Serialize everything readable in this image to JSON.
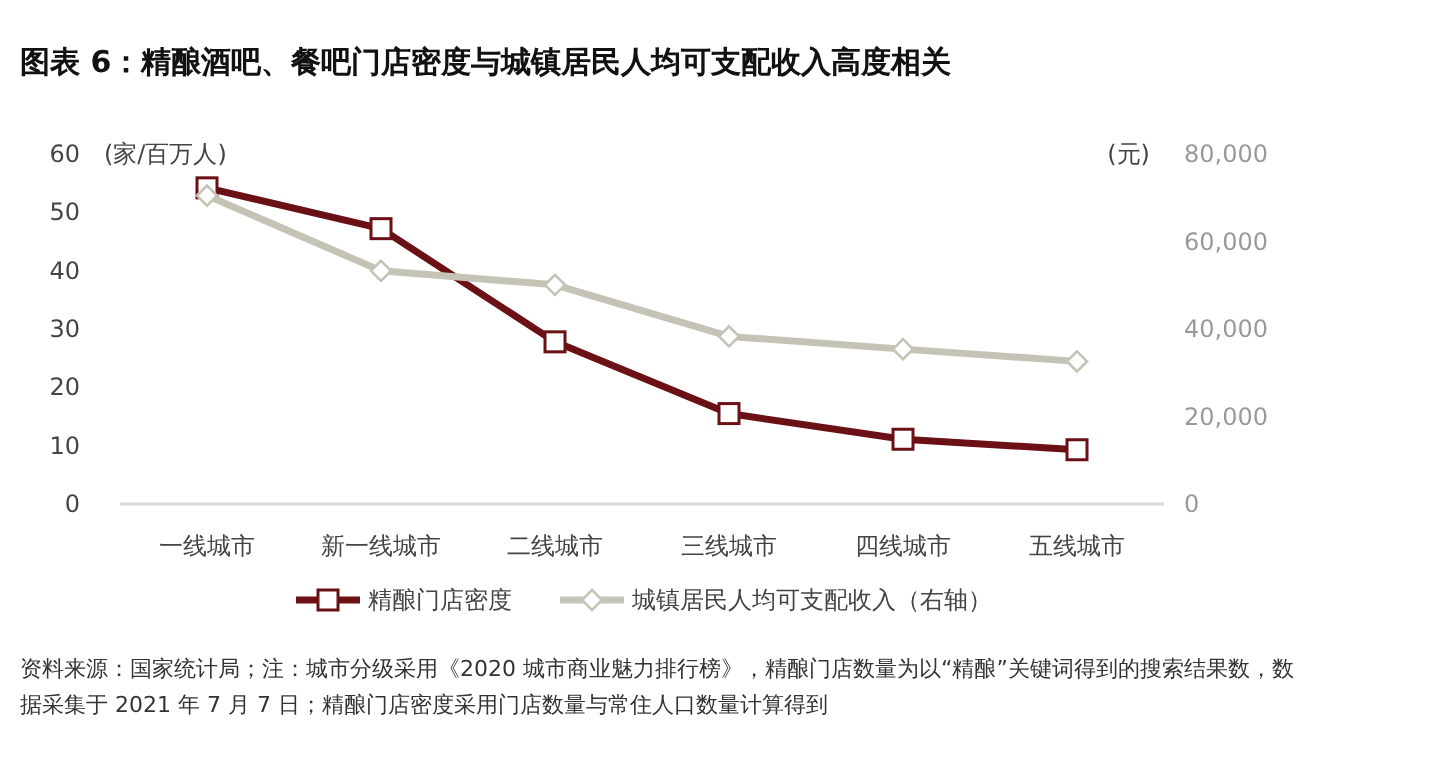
{
  "chart_data": {
    "type": "line",
    "title": "图表 6：精酿酒吧、餐吧门店密度与城镇居民人均可支配收入高度相关",
    "ylabel": "(家/百万人)",
    "y2label": "(元)",
    "categories": [
      "一线城市",
      "新一线城市",
      "二线城市",
      "三线城市",
      "四线城市",
      "五线城市"
    ],
    "series": [
      {
        "name": "精酿门店密度",
        "color": "#6b1014",
        "marker": "square",
        "values": [
          54.2,
          47.2,
          27.8,
          15.5,
          11.1,
          9.3
        ]
      },
      {
        "name": "城镇居民人均可支配收入（右轴）",
        "color": "#c4c3b6",
        "marker": "diamond",
        "axis": "y2",
        "values": [
          70500,
          53300,
          50100,
          38300,
          35400,
          32600
        ]
      }
    ],
    "ylim": [
      0,
      60
    ],
    "yticks": [
      0,
      10,
      20,
      30,
      40,
      50,
      60
    ],
    "y2lim": [
      0,
      80000
    ],
    "y2ticks": [
      {
        "value": 0,
        "label": "0"
      },
      {
        "value": 20000,
        "label": "20,000"
      },
      {
        "value": 40000,
        "label": "40,000"
      },
      {
        "value": 60000,
        "label": "60,000"
      },
      {
        "value": 80000,
        "label": "80,000"
      }
    ],
    "legend": "bottom",
    "annotations": [
      "资料来源：国家统计局；注：城市分级采用《2020 城市商业魅力排行榜》，精酿门店数量为以“精酿”关键词得到的搜索结果数，数据采集于 2021 年 7 月 7 日；精酿门店密度采用门店数量与常住人口数量计算得到"
    ]
  }
}
